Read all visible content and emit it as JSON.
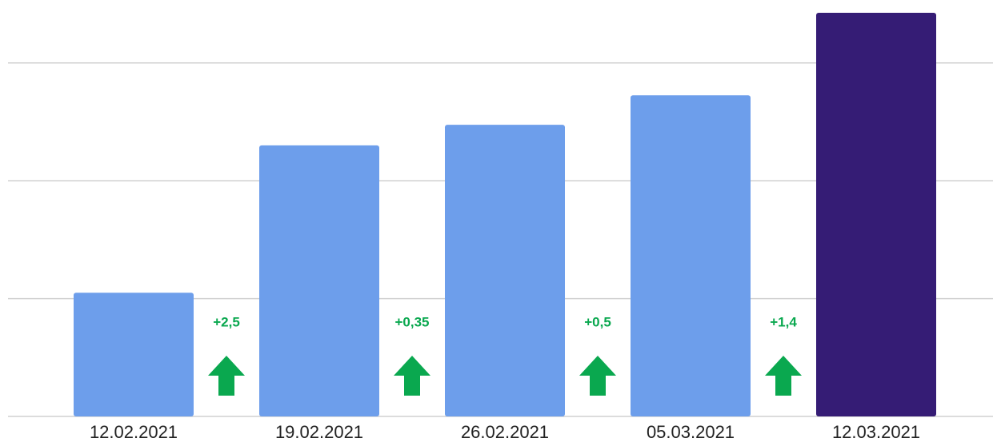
{
  "chart_data": {
    "type": "bar",
    "categories": [
      "12.02.2021",
      "19.02.2021",
      "26.02.2021",
      "05.03.2021",
      "12.03.2021"
    ],
    "values": [
      2.1,
      4.6,
      4.95,
      5.45,
      6.85
    ],
    "colors": [
      "#6d9eeb",
      "#6d9eeb",
      "#6d9eeb",
      "#6d9eeb",
      "#351c75"
    ],
    "annotations": [
      "+2,5",
      "+0,35",
      "+0,5",
      "+1,4"
    ],
    "ylim": [
      0,
      7
    ],
    "yticks": [
      0,
      2,
      4,
      6
    ],
    "grid": true
  }
}
